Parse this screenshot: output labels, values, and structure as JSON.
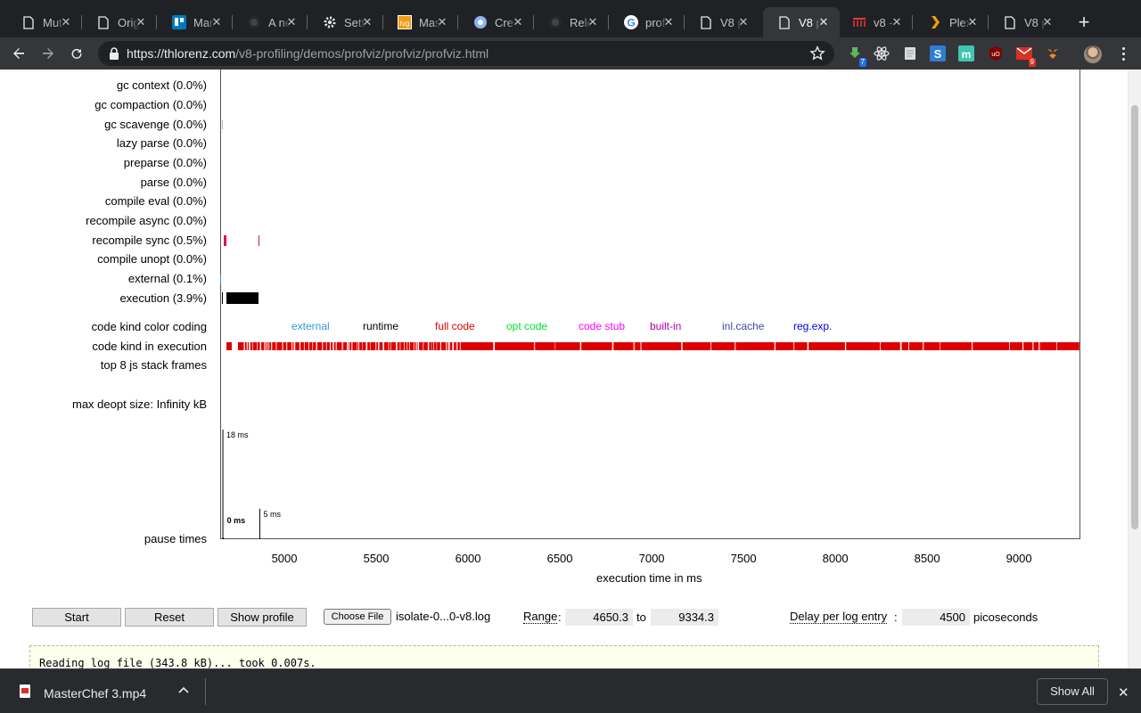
{
  "browser": {
    "tabs": [
      {
        "title": "Mut",
        "icon": "doc-icon"
      },
      {
        "title": "Orig",
        "icon": "doc-icon"
      },
      {
        "title": "Mar",
        "icon": "trello-icon"
      },
      {
        "title": "A ne",
        "icon": "github-icon"
      },
      {
        "title": "Sett",
        "icon": "gear-icon"
      },
      {
        "title": "Mas",
        "icon": "tvguide-icon"
      },
      {
        "title": "Cre",
        "icon": "chrome-icon"
      },
      {
        "title": "Rele",
        "icon": "github-icon"
      },
      {
        "title": "prof",
        "icon": "google-icon"
      },
      {
        "title": "V8 p",
        "icon": "doc-icon"
      },
      {
        "title": "V8 p",
        "icon": "doc-icon",
        "active": true
      },
      {
        "title": "v8 -",
        "icon": "bars-icon"
      },
      {
        "title": "Plex",
        "icon": "plex-icon"
      },
      {
        "title": "V8 p",
        "icon": "doc-icon"
      }
    ],
    "url_host": "https://thlorenz.com",
    "url_path": "/v8-profiling/demos/profviz/profviz/profviz.html",
    "ext_badge_1": "7",
    "ext_badge_2": "9"
  },
  "profviz": {
    "rows": [
      {
        "label": "gc context (0.0%)"
      },
      {
        "label": "gc compaction (0.0%)"
      },
      {
        "label": "gc scavenge (0.0%)"
      },
      {
        "label": "lazy parse (0.0%)"
      },
      {
        "label": "preparse (0.0%)"
      },
      {
        "label": "parse (0.0%)"
      },
      {
        "label": "compile eval (0.0%)"
      },
      {
        "label": "recompile async (0.0%)"
      },
      {
        "label": "recompile sync (0.5%)"
      },
      {
        "label": "compile unopt (0.0%)"
      },
      {
        "label": "external (0.1%)"
      },
      {
        "label": "execution (3.9%)"
      },
      {
        "label": "code kind color coding"
      },
      {
        "label": "code kind in execution"
      },
      {
        "label": "top 8 js stack frames"
      },
      {
        "label": "max deopt size: Infinity kB"
      },
      {
        "label": "pause times"
      }
    ],
    "legend": [
      {
        "label": "external",
        "color": "#3399dd"
      },
      {
        "label": "runtime",
        "color": "#000000"
      },
      {
        "label": "full code",
        "color": "#dd0000"
      },
      {
        "label": "opt code",
        "color": "#00dd33"
      },
      {
        "label": "code stub",
        "color": "#ff00ff"
      },
      {
        "label": "built-in",
        "color": "#aa00aa"
      },
      {
        "label": "inl.cache",
        "color": "#4444aa"
      },
      {
        "label": "reg.exp.",
        "color": "#0000dd"
      }
    ],
    "chart_data": {
      "type": "bar",
      "title": "",
      "xlabel": "execution time in ms",
      "ylabel": "pause times",
      "x_ticks": [
        5000,
        5500,
        6000,
        6500,
        7000,
        7500,
        8000,
        8500,
        9000
      ],
      "xlim": [
        4650.3,
        9334.3
      ],
      "pause_times": [
        {
          "x": 4665,
          "value": 18,
          "label": "18 ms"
        },
        {
          "x": 4668,
          "value": 0,
          "label": "0 ms"
        },
        {
          "x": 4866,
          "value": 5,
          "label": "5 ms"
        }
      ]
    },
    "controls": {
      "start": "Start",
      "reset": "Reset",
      "show_profile": "Show profile",
      "choose_file": "Choose File",
      "file_name": "isolate-0...0-v8.log",
      "range_label": "Range",
      "range_colon": ":",
      "range_from": "4650.3",
      "range_to_word": "to",
      "range_to": "9334.3",
      "delay_label": "Delay per log entry",
      "delay_colon": ":",
      "delay_value": "4500",
      "delay_unit": "picoseconds"
    },
    "log_text": "Reading log file (343.8 kB)... took 0.007s."
  },
  "download": {
    "file_name": "MasterChef 3.mp4",
    "show_all": "Show All"
  }
}
